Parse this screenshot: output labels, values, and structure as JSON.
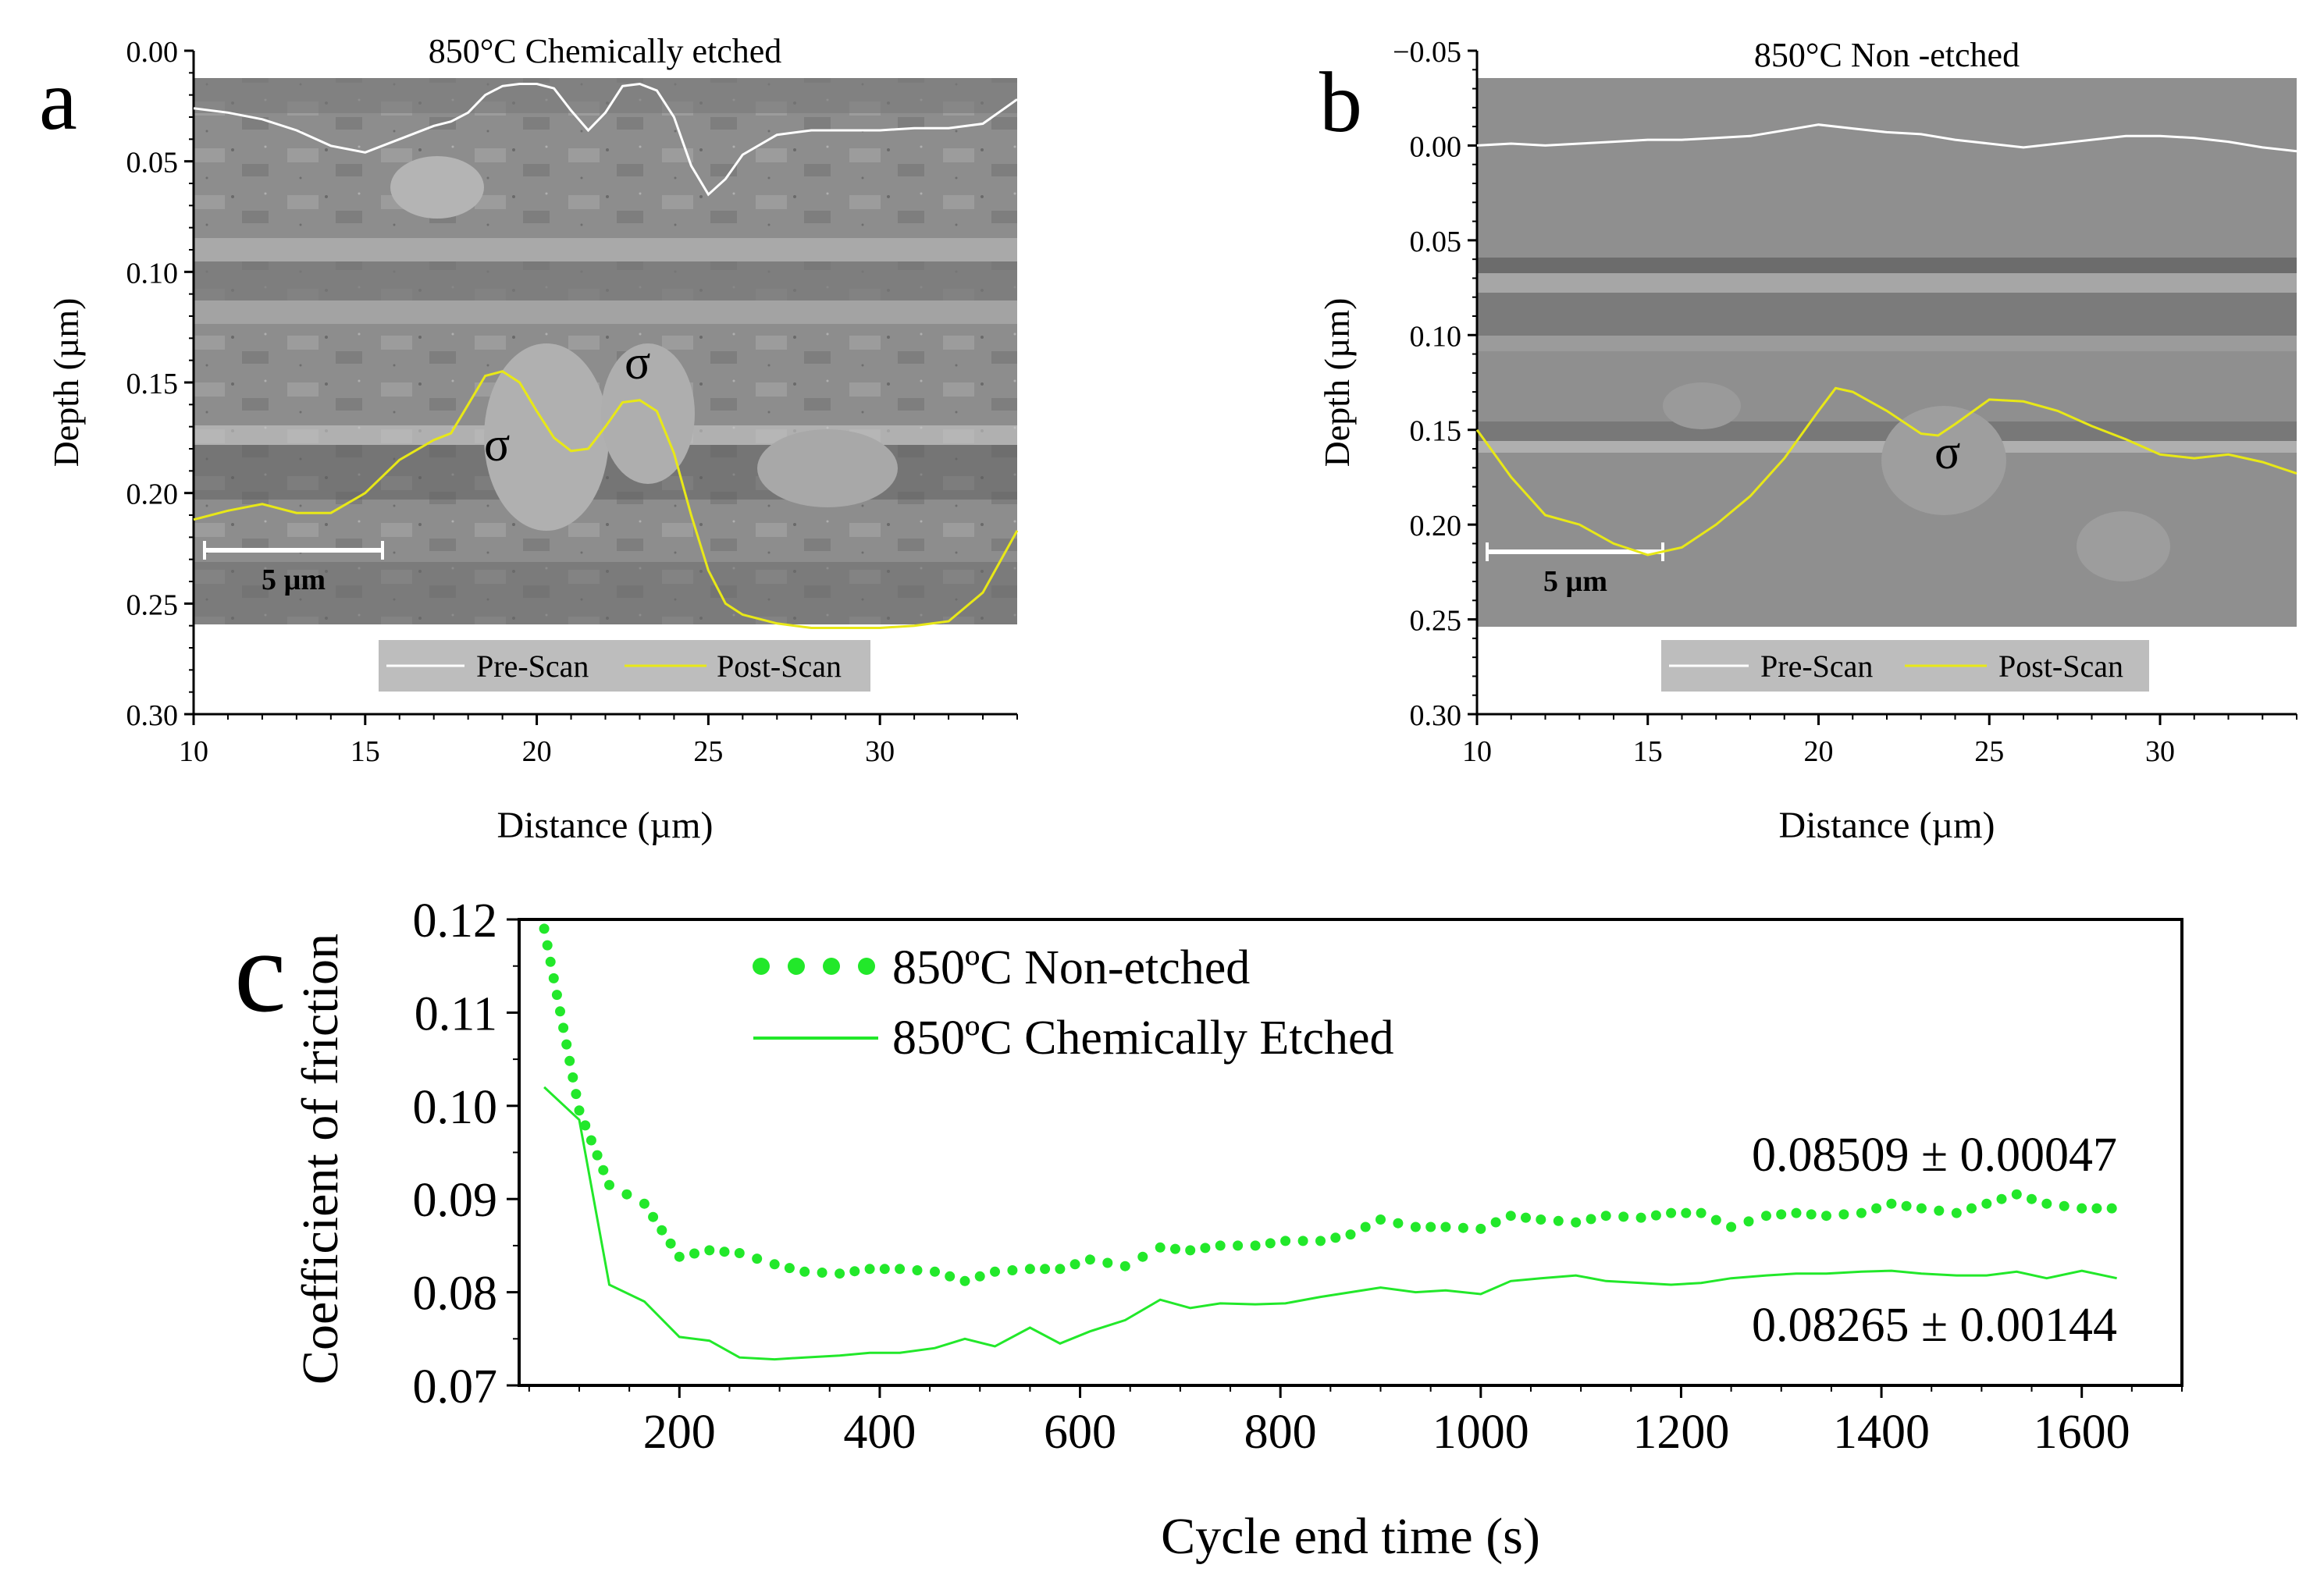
{
  "colors": {
    "sem_background": "#8c8c8c",
    "pre_scan": "#ffffff",
    "post_scan": "#e8e817",
    "legend_box": "#bdbdbd",
    "friction_green": "#22e82a"
  },
  "panel_a": {
    "letter": "a",
    "title": "850°C Chemically etched",
    "x_label": "Distance (µm)",
    "y_label": "Depth (µm)",
    "x_ticks": [
      "10",
      "15",
      "20",
      "25",
      "30"
    ],
    "y_ticks": [
      "0.00",
      "0.05",
      "0.10",
      "0.15",
      "0.20",
      "0.25",
      "0.30"
    ],
    "scale_bar": "5 µm",
    "sigma_labels": [
      "σ",
      "σ"
    ],
    "legend": [
      "Pre-Scan",
      "Post-Scan"
    ]
  },
  "panel_b": {
    "letter": "b",
    "title": "850°C Non -etched",
    "x_label": "Distance (µm)",
    "y_label": "Depth (µm)",
    "x_ticks": [
      "10",
      "15",
      "20",
      "25",
      "30"
    ],
    "y_ticks": [
      "−0.05",
      "0.00",
      "0.05",
      "0.10",
      "0.15",
      "0.20",
      "0.25",
      "0.30"
    ],
    "scale_bar": "5 µm",
    "sigma_labels": [
      "σ"
    ],
    "legend": [
      "Pre-Scan",
      "Post-Scan"
    ]
  },
  "panel_c": {
    "letter": "c",
    "x_label": "Cycle end time (s)",
    "y_label": "Coefficient of friction",
    "x_ticks": [
      "200",
      "400",
      "600",
      "800",
      "1000",
      "1200",
      "1400",
      "1600"
    ],
    "y_ticks": [
      "0.07",
      "0.08",
      "0.09",
      "0.10",
      "0.11",
      "0.12"
    ],
    "legend": [
      "850ºC  Non-etched",
      "850ºC  Chemically Etched"
    ],
    "annotation_non_etched": "0.08509 ± 0.00047",
    "annotation_etched": "0.08265 ± 0.00144"
  },
  "chart_data": [
    {
      "type": "line",
      "panel": "a",
      "title": "850°C Chemically etched",
      "xlabel": "Distance (µm)",
      "ylabel": "Depth (µm)",
      "xlim": [
        10,
        34
      ],
      "ylim": [
        0.3,
        0.0
      ],
      "y_inverted": true,
      "series": [
        {
          "name": "Pre-Scan",
          "x": [
            10,
            11,
            12,
            13,
            14,
            15,
            16,
            17,
            17.5,
            18,
            18.5,
            19,
            19.5,
            20,
            20.5,
            21,
            21.5,
            22,
            22.5,
            23,
            23.5,
            24,
            24.5,
            25,
            25.5,
            26,
            27,
            28,
            29,
            30,
            31,
            32,
            33,
            34
          ],
          "y": [
            0.026,
            0.028,
            0.031,
            0.036,
            0.043,
            0.046,
            0.04,
            0.034,
            0.032,
            0.028,
            0.02,
            0.016,
            0.015,
            0.015,
            0.017,
            0.027,
            0.036,
            0.028,
            0.016,
            0.015,
            0.018,
            0.03,
            0.052,
            0.065,
            0.058,
            0.047,
            0.038,
            0.036,
            0.036,
            0.036,
            0.035,
            0.035,
            0.033,
            0.022
          ]
        },
        {
          "name": "Post-Scan",
          "x": [
            10,
            11,
            12,
            13,
            14,
            15,
            16,
            17,
            17.5,
            18,
            18.5,
            19,
            19.5,
            20,
            20.5,
            21,
            21.5,
            22,
            22.5,
            23,
            23.5,
            24,
            24.5,
            25,
            25.5,
            26,
            27,
            28,
            29,
            30,
            31,
            32,
            33,
            34
          ],
          "y": [
            0.212,
            0.208,
            0.205,
            0.209,
            0.209,
            0.2,
            0.185,
            0.176,
            0.173,
            0.16,
            0.147,
            0.145,
            0.15,
            0.163,
            0.175,
            0.181,
            0.18,
            0.17,
            0.159,
            0.158,
            0.163,
            0.182,
            0.21,
            0.235,
            0.25,
            0.255,
            0.259,
            0.261,
            0.261,
            0.261,
            0.26,
            0.258,
            0.245,
            0.217
          ]
        }
      ]
    },
    {
      "type": "line",
      "panel": "b",
      "title": "850°C Non -etched",
      "xlabel": "Distance (µm)",
      "ylabel": "Depth (µm)",
      "xlim": [
        10,
        34
      ],
      "ylim": [
        0.3,
        -0.05
      ],
      "y_inverted": true,
      "series": [
        {
          "name": "Pre-Scan",
          "x": [
            10,
            11,
            12,
            13,
            14,
            15,
            16,
            17,
            18,
            19,
            20,
            21,
            22,
            23,
            24,
            25,
            26,
            27,
            28,
            29,
            30,
            31,
            32,
            33,
            34
          ],
          "y": [
            0.0,
            -0.001,
            0.0,
            -0.001,
            -0.002,
            -0.003,
            -0.003,
            -0.004,
            -0.005,
            -0.008,
            -0.011,
            -0.009,
            -0.007,
            -0.006,
            -0.003,
            -0.001,
            0.001,
            -0.001,
            -0.003,
            -0.005,
            -0.005,
            -0.004,
            -0.002,
            0.001,
            0.003
          ]
        },
        {
          "name": "Post-Scan",
          "x": [
            10,
            11,
            12,
            13,
            14,
            15,
            16,
            17,
            18,
            19,
            20,
            20.5,
            21,
            22,
            23,
            23.5,
            24,
            25,
            26,
            27,
            28,
            29,
            30,
            31,
            32,
            33,
            34
          ],
          "y": [
            0.15,
            0.175,
            0.195,
            0.2,
            0.21,
            0.216,
            0.212,
            0.2,
            0.185,
            0.165,
            0.14,
            0.128,
            0.13,
            0.14,
            0.152,
            0.153,
            0.147,
            0.134,
            0.135,
            0.14,
            0.148,
            0.155,
            0.163,
            0.165,
            0.163,
            0.167,
            0.173
          ]
        }
      ]
    },
    {
      "type": "line",
      "panel": "c",
      "xlabel": "Cycle end time (s)",
      "ylabel": "Coefficient of friction",
      "xlim": [
        40,
        1700
      ],
      "ylim": [
        0.07,
        0.12
      ],
      "series": [
        {
          "name": "850ºC  Non-etched",
          "style": "dotted",
          "x": [
            65,
            100,
            130,
            165,
            200,
            230,
            260,
            295,
            325,
            360,
            390,
            420,
            455,
            485,
            515,
            550,
            580,
            610,
            645,
            680,
            710,
            740,
            775,
            805,
            840,
            870,
            900,
            935,
            965,
            1000,
            1030,
            1060,
            1095,
            1125,
            1160,
            1190,
            1220,
            1250,
            1285,
            1315,
            1345,
            1380,
            1410,
            1440,
            1475,
            1505,
            1535,
            1565,
            1600,
            1630
          ],
          "y": [
            0.119,
            0.0995,
            0.0915,
            0.0895,
            0.0838,
            0.0845,
            0.0842,
            0.083,
            0.0822,
            0.082,
            0.0825,
            0.0825,
            0.0822,
            0.0812,
            0.0822,
            0.0825,
            0.0825,
            0.0835,
            0.0828,
            0.0848,
            0.0845,
            0.085,
            0.085,
            0.0855,
            0.0855,
            0.0862,
            0.0878,
            0.087,
            0.087,
            0.0868,
            0.0882,
            0.0878,
            0.0875,
            0.0882,
            0.088,
            0.0885,
            0.0885,
            0.087,
            0.0882,
            0.0885,
            0.0882,
            0.0885,
            0.0895,
            0.089,
            0.0885,
            0.0895,
            0.0905,
            0.0895,
            0.089,
            0.089
          ]
        },
        {
          "name": "850ºC  Chemically Etched",
          "style": "solid",
          "x": [
            65,
            100,
            130,
            165,
            200,
            230,
            260,
            295,
            325,
            360,
            390,
            420,
            455,
            485,
            515,
            550,
            580,
            610,
            645,
            680,
            710,
            740,
            775,
            805,
            840,
            870,
            900,
            935,
            965,
            1000,
            1030,
            1060,
            1095,
            1125,
            1160,
            1190,
            1220,
            1250,
            1285,
            1315,
            1345,
            1380,
            1410,
            1440,
            1475,
            1505,
            1535,
            1565,
            1600,
            1635
          ],
          "y": [
            0.102,
            0.0985,
            0.0808,
            0.079,
            0.0752,
            0.0748,
            0.073,
            0.0728,
            0.073,
            0.0732,
            0.0735,
            0.0735,
            0.074,
            0.075,
            0.0742,
            0.0762,
            0.0745,
            0.0758,
            0.077,
            0.0792,
            0.0783,
            0.0788,
            0.0787,
            0.0788,
            0.0795,
            0.08,
            0.0805,
            0.08,
            0.0802,
            0.0798,
            0.0812,
            0.0815,
            0.0818,
            0.0812,
            0.081,
            0.0808,
            0.081,
            0.0815,
            0.0818,
            0.082,
            0.082,
            0.0822,
            0.0823,
            0.082,
            0.0818,
            0.0818,
            0.0822,
            0.0815,
            0.0823,
            0.0815
          ]
        }
      ],
      "annotations": [
        "0.08509 ± 0.00047",
        "0.08265 ± 0.00144"
      ]
    }
  ]
}
